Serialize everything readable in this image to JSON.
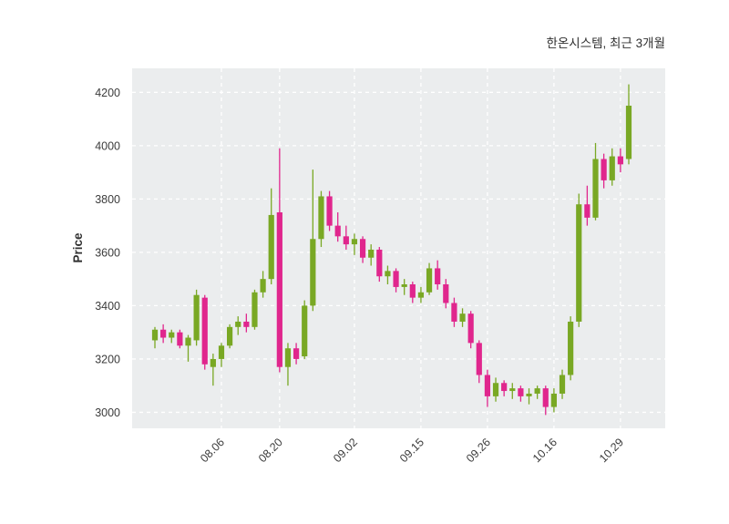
{
  "title": "한온시스템, 최근 3개월",
  "chart_data": {
    "type": "candlestick",
    "title": "한온시스템, 최근 3개월",
    "xlabel": "",
    "ylabel": "Price",
    "ylim": [
      2940,
      4290
    ],
    "yticks": [
      3000,
      3200,
      3400,
      3600,
      3800,
      4000,
      4200
    ],
    "xtick_labels": [
      "08.06",
      "08.20",
      "09.02",
      "09.15",
      "09.26",
      "10.16",
      "10.29"
    ],
    "xtick_indices": [
      8,
      15,
      24,
      32,
      40,
      48,
      56
    ],
    "grid": true,
    "legend": "none",
    "colors": {
      "up": "#79a824",
      "down": "#e0268d",
      "plot_bg": "#ebedee",
      "grid": "#ffffff",
      "text": "#3c3c3c",
      "page_bg": "#ffffff"
    },
    "candles_format": "[open, high, low, close]",
    "candles": [
      [
        3270,
        3320,
        3240,
        3310
      ],
      [
        3310,
        3330,
        3260,
        3280
      ],
      [
        3280,
        3310,
        3260,
        3300
      ],
      [
        3300,
        3310,
        3240,
        3250
      ],
      [
        3250,
        3290,
        3190,
        3280
      ],
      [
        3270,
        3460,
        3250,
        3440
      ],
      [
        3430,
        3440,
        3160,
        3180
      ],
      [
        3170,
        3220,
        3100,
        3200
      ],
      [
        3200,
        3260,
        3170,
        3250
      ],
      [
        3250,
        3330,
        3240,
        3320
      ],
      [
        3320,
        3360,
        3290,
        3340
      ],
      [
        3340,
        3370,
        3300,
        3320
      ],
      [
        3320,
        3460,
        3310,
        3450
      ],
      [
        3450,
        3530,
        3430,
        3500
      ],
      [
        3500,
        3840,
        3480,
        3740
      ],
      [
        3750,
        3990,
        3150,
        3170
      ],
      [
        3170,
        3260,
        3100,
        3240
      ],
      [
        3240,
        3260,
        3180,
        3200
      ],
      [
        3210,
        3420,
        3200,
        3400
      ],
      [
        3400,
        3910,
        3380,
        3650
      ],
      [
        3650,
        3830,
        3620,
        3810
      ],
      [
        3810,
        3830,
        3680,
        3700
      ],
      [
        3700,
        3750,
        3640,
        3660
      ],
      [
        3660,
        3700,
        3610,
        3630
      ],
      [
        3630,
        3670,
        3590,
        3650
      ],
      [
        3650,
        3660,
        3560,
        3580
      ],
      [
        3580,
        3630,
        3550,
        3610
      ],
      [
        3610,
        3620,
        3490,
        3510
      ],
      [
        3510,
        3550,
        3480,
        3530
      ],
      [
        3530,
        3540,
        3450,
        3470
      ],
      [
        3470,
        3500,
        3440,
        3480
      ],
      [
        3480,
        3490,
        3410,
        3430
      ],
      [
        3430,
        3470,
        3410,
        3450
      ],
      [
        3450,
        3560,
        3440,
        3540
      ],
      [
        3540,
        3570,
        3460,
        3480
      ],
      [
        3480,
        3500,
        3390,
        3410
      ],
      [
        3410,
        3430,
        3320,
        3340
      ],
      [
        3340,
        3390,
        3320,
        3370
      ],
      [
        3370,
        3380,
        3240,
        3260
      ],
      [
        3260,
        3270,
        3110,
        3140
      ],
      [
        3140,
        3160,
        3020,
        3060
      ],
      [
        3060,
        3130,
        3040,
        3110
      ],
      [
        3110,
        3120,
        3060,
        3080
      ],
      [
        3080,
        3110,
        3050,
        3090
      ],
      [
        3090,
        3100,
        3040,
        3060
      ],
      [
        3060,
        3090,
        3030,
        3070
      ],
      [
        3070,
        3100,
        3050,
        3090
      ],
      [
        3090,
        3100,
        2990,
        3020
      ],
      [
        3020,
        3090,
        3000,
        3070
      ],
      [
        3070,
        3160,
        3050,
        3140
      ],
      [
        3140,
        3360,
        3120,
        3340
      ],
      [
        3340,
        3820,
        3320,
        3780
      ],
      [
        3780,
        3850,
        3700,
        3730
      ],
      [
        3730,
        4010,
        3720,
        3950
      ],
      [
        3950,
        3970,
        3840,
        3870
      ],
      [
        3870,
        3990,
        3850,
        3960
      ],
      [
        3960,
        3990,
        3900,
        3930
      ],
      [
        3950,
        4230,
        3930,
        4150
      ]
    ]
  }
}
